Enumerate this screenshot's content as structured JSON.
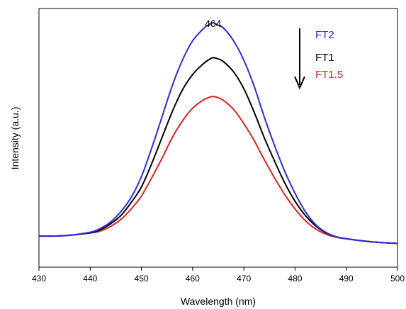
{
  "chart_data": {
    "type": "line",
    "title": "",
    "xlabel": "Wavelength (nm)",
    "ylabel": "Intensity (a.u.)",
    "xlim": [
      430,
      500
    ],
    "ylim": [
      0,
      1
    ],
    "x_ticks": [
      430,
      440,
      450,
      460,
      470,
      480,
      490,
      500
    ],
    "y_ticks_shown": false,
    "grid": false,
    "legend_position": "top-right",
    "annotations": [
      {
        "text": "464",
        "x": 464
      }
    ],
    "arrow": {
      "direction": "down",
      "meaning": "decreasing intensity from FT2 to FT1.5"
    },
    "series": [
      {
        "name": "FT2",
        "color": "#2a2ae6",
        "x": [
          430,
          435,
          440,
          442,
          444,
          446,
          448,
          450,
          452,
          454,
          456,
          458,
          460,
          462,
          463,
          464,
          465,
          466,
          468,
          470,
          472,
          474,
          476,
          478,
          480,
          482,
          484,
          486,
          488,
          490,
          495,
          500
        ],
        "y": [
          0.12,
          0.122,
          0.135,
          0.15,
          0.175,
          0.215,
          0.27,
          0.35,
          0.46,
          0.58,
          0.7,
          0.8,
          0.875,
          0.92,
          0.935,
          0.945,
          0.935,
          0.925,
          0.875,
          0.8,
          0.7,
          0.58,
          0.47,
          0.37,
          0.285,
          0.215,
          0.165,
          0.135,
          0.118,
          0.11,
          0.098,
          0.092
        ]
      },
      {
        "name": "FT1",
        "color": "#000000",
        "x": [
          430,
          435,
          440,
          442,
          444,
          446,
          448,
          450,
          452,
          454,
          456,
          458,
          460,
          462,
          463,
          464,
          465,
          466,
          468,
          470,
          472,
          474,
          476,
          478,
          480,
          482,
          484,
          486,
          488,
          490,
          495,
          500
        ],
        "y": [
          0.12,
          0.122,
          0.133,
          0.145,
          0.168,
          0.2,
          0.25,
          0.31,
          0.4,
          0.5,
          0.6,
          0.685,
          0.745,
          0.785,
          0.8,
          0.81,
          0.805,
          0.795,
          0.755,
          0.69,
          0.6,
          0.5,
          0.41,
          0.325,
          0.255,
          0.2,
          0.16,
          0.133,
          0.118,
          0.11,
          0.098,
          0.092
        ]
      },
      {
        "name": "FT1.5",
        "color": "#e02020",
        "x": [
          430,
          435,
          440,
          442,
          444,
          446,
          448,
          450,
          452,
          454,
          456,
          458,
          460,
          462,
          463,
          464,
          465,
          466,
          468,
          470,
          472,
          474,
          476,
          478,
          480,
          482,
          484,
          486,
          488,
          490,
          495,
          500
        ],
        "y": [
          0.12,
          0.122,
          0.132,
          0.14,
          0.158,
          0.185,
          0.225,
          0.275,
          0.345,
          0.42,
          0.5,
          0.565,
          0.615,
          0.645,
          0.655,
          0.66,
          0.655,
          0.645,
          0.61,
          0.555,
          0.49,
          0.415,
          0.345,
          0.28,
          0.225,
          0.18,
          0.148,
          0.128,
          0.116,
          0.11,
          0.098,
          0.092
        ]
      }
    ]
  }
}
